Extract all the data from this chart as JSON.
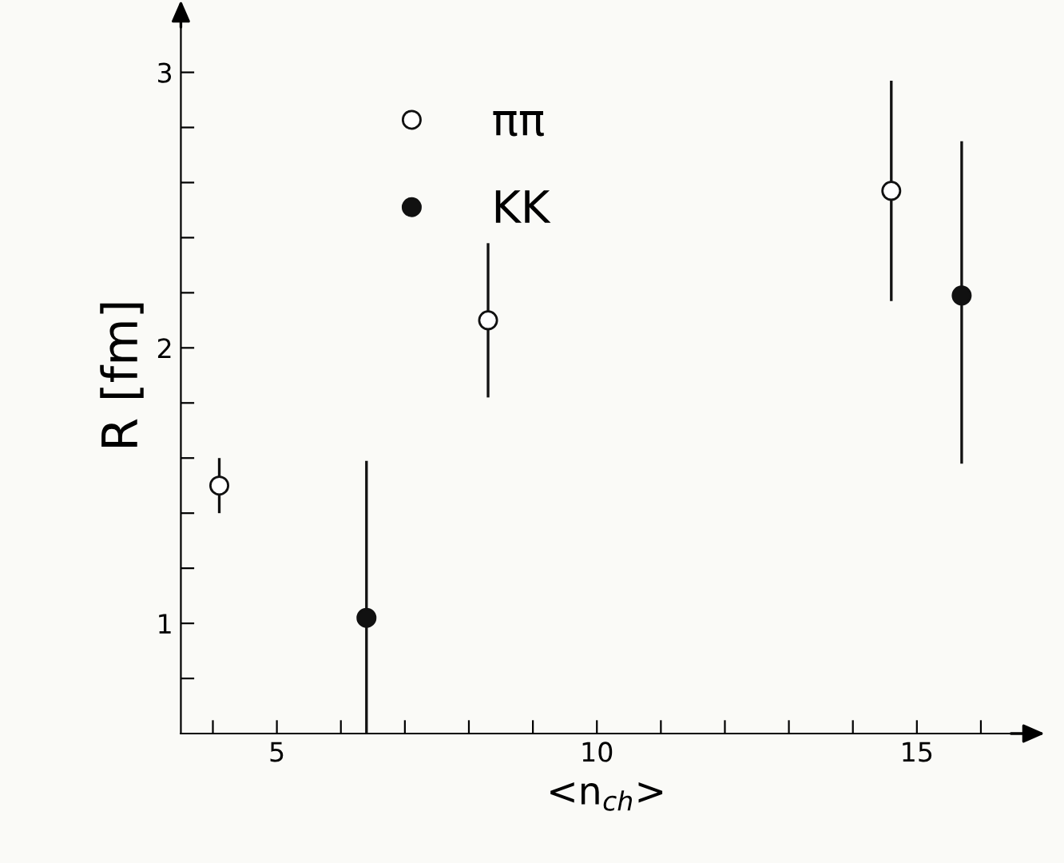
{
  "chart_data": {
    "type": "scatter",
    "xlabel": "<n$_{ch}$>",
    "ylabel": "R [fm]",
    "series": [
      {
        "name": "ππ",
        "color": "#ffffff",
        "x": [
          4.1,
          8.3,
          14.6
        ],
        "values": [
          1.5,
          2.1,
          2.57
        ],
        "errors": [
          0.1,
          0.28,
          0.4
        ]
      },
      {
        "name": "KK",
        "color": "#111111",
        "x": [
          6.4,
          15.7
        ],
        "values": [
          1.02,
          2.19
        ],
        "errors": [
          [
            0.6,
            1.59
          ],
          [
            1.58,
            2.75
          ]
        ]
      }
    ],
    "xlim": [
      3.5,
      16.8
    ],
    "ylim": [
      0.6,
      3.2
    ],
    "xticks": [
      {
        "value": 4,
        "label": null
      },
      5,
      {
        "value": 6,
        "label": null
      },
      {
        "value": 7,
        "label": null
      },
      {
        "value": 8,
        "label": null
      },
      {
        "value": 9,
        "label": null
      },
      10,
      {
        "value": 11,
        "label": null
      },
      {
        "value": 12,
        "label": null
      },
      {
        "value": 13,
        "label": null
      },
      {
        "value": 14,
        "label": null
      },
      15,
      {
        "value": 16,
        "label": null
      }
    ],
    "yticks": [
      {
        "value": 0.8,
        "label": null
      },
      1,
      {
        "value": 1.2,
        "label": null
      },
      {
        "value": 1.4,
        "label": null
      },
      {
        "value": 1.6,
        "label": null
      },
      {
        "value": 1.8,
        "label": null
      },
      2,
      {
        "value": 2.2,
        "label": null
      },
      {
        "value": 2.4,
        "label": null
      },
      {
        "value": 2.6,
        "label": null
      },
      {
        "value": 2.8,
        "label": null
      },
      3
    ],
    "grid": false,
    "legend": "top left",
    "marker": "circle"
  }
}
